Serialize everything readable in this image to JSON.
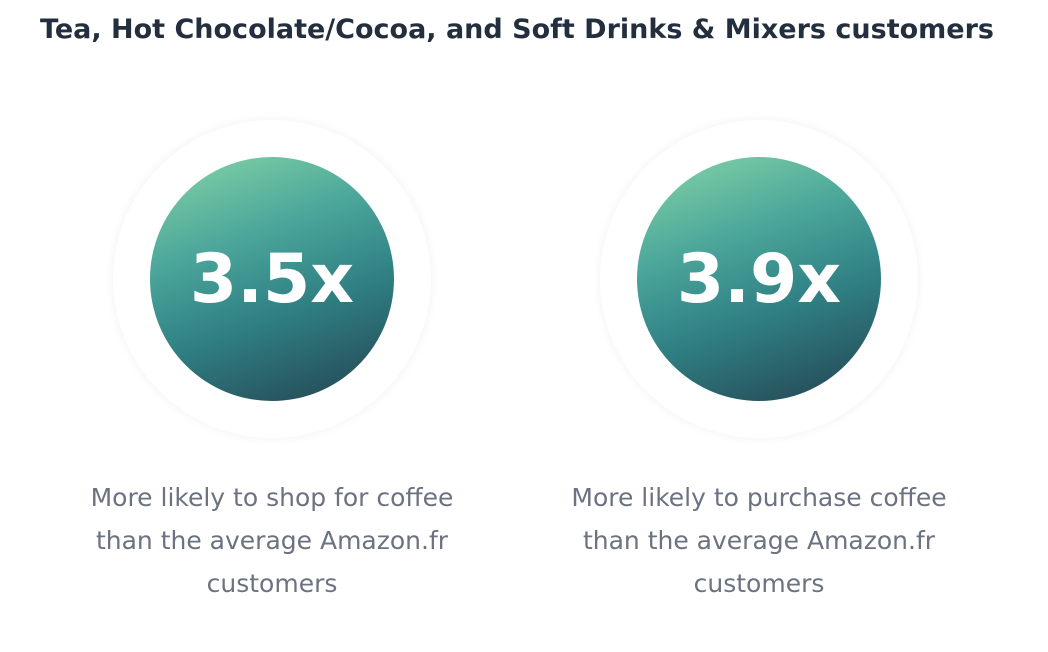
{
  "title": "Tea, Hot Chocolate/Cocoa, and Soft Drinks & Mixers customers",
  "stats": [
    {
      "value": "3.5x",
      "caption": "More likely to shop for coffee than the average Amazon.fr customers"
    },
    {
      "value": "3.9x",
      "caption": "More likely to purchase coffee than the average Amazon.fr customers"
    }
  ],
  "colors": {
    "title": "#232f3e",
    "caption": "#6b7280",
    "disc_gradient_start": "#86d6a6",
    "disc_gradient_end": "#24424f"
  }
}
